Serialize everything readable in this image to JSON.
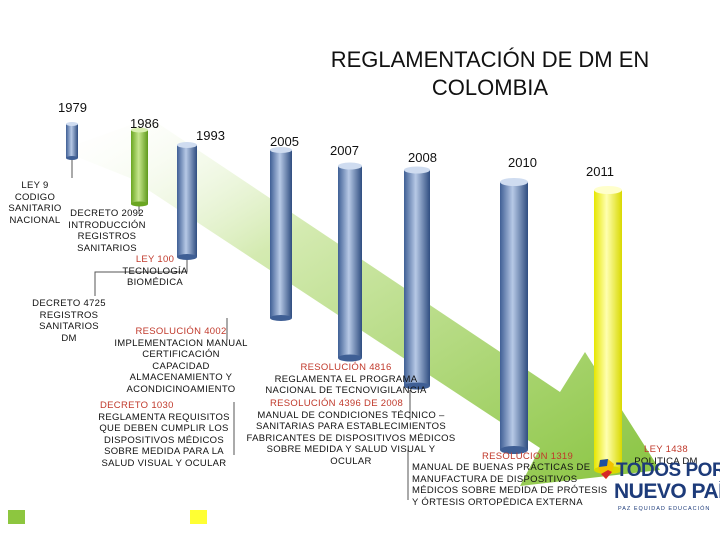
{
  "title": "REGLAMENTACIÓN DE DM EN COLOMBIA",
  "years": [
    "1979",
    "1986",
    "1993",
    "2005",
    "2007",
    "2008",
    "2010",
    "2011"
  ],
  "labels": {
    "ley9": [
      "LEY 9",
      "CODIGO",
      "SANITARIO",
      "NACIONAL"
    ],
    "decreto2092": [
      "DECRETO 2092",
      "INTRODUCCIÓN",
      "REGISTROS",
      "SANITARIOS"
    ],
    "ley100": [
      "LEY 100",
      "TECNOLOGÍA",
      "BIOMÉDICA"
    ],
    "decreto4725": [
      "DECRETO 4725",
      "REGISTROS",
      "SANITARIOS",
      "DM"
    ],
    "res4002": [
      "RESOLUCIÓN 4002",
      "IMPLEMENTACION MANUAL",
      "CERTIFICACIÓN",
      "CAPACIDAD",
      "ALMACENAMIENTO Y",
      "ACONDICINOAMIENTO"
    ],
    "decreto1030_title": "DECRETO 1030",
    "decreto1030": [
      "REGLAMENTA REQUISITOS",
      "QUE DEBEN CUMPLIR LOS",
      "DISPOSITIVOS MÉDICOS",
      "SOBRE MEDIDA PARA LA",
      "SALUD VISUAL Y OCULAR"
    ],
    "res4816_title": "RESOLUCIÓN 4816",
    "res4816": [
      "REGLAMENTA EL PROGRAMA",
      "NACIONAL DE TECNOVIGILANCIA"
    ],
    "res4396_title": "RESOLUCIÓN 4396 DE 2008",
    "res4396": [
      "MANUAL DE CONDICIONES TÉCNICO –",
      "SANITARIAS PARA ESTABLECIMIENTOS",
      "FABRICANTES DE DISPOSITIVOS MÉDICOS",
      "SOBRE MEDIDA Y SALUD VISUAL Y",
      "OCULAR"
    ],
    "res1319_title": "RESOLUCION 1319",
    "res1319": [
      "MANUAL DE BUENAS PRÁCTICAS DE",
      "MANUFACTURA DE DISPOSITIVOS",
      "MÉDICOS SOBRE MEDIDA DE PRÓTESIS",
      "Y ÓRTESIS ORTOPÉDICA EXTERNA"
    ],
    "ley1438": [
      "LEY 1438",
      "POLITICA DM"
    ]
  },
  "logo": {
    "line1": "TODOS POR UN",
    "line2": "NUEVO PAÍS",
    "sub": "PAZ  EQUIDAD  EDUCACIÓN"
  },
  "colors": {
    "arrow": "#8cc63f",
    "cylinder_blue": "#6b8fc7",
    "cylinder_green": "#8dc63f",
    "cylinder_yellow": "#ffff33",
    "red_text": "#c0392b"
  }
}
